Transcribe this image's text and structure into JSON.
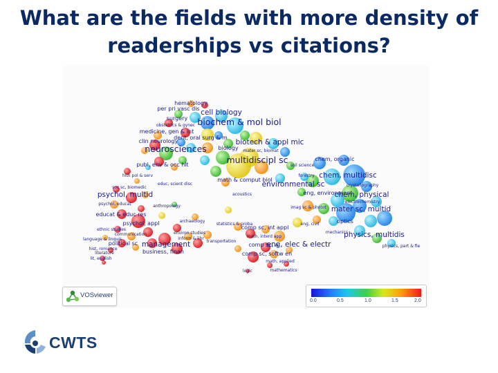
{
  "title": "What are the fields with more density of readerships vs citations?",
  "map": {
    "labels": [
      {
        "text": "hematology",
        "size": "s",
        "cat": 2
      },
      {
        "text": "per pri vasc dis",
        "size": "s",
        "cat": 2
      },
      {
        "text": "cell biology",
        "size": "m",
        "cat": 2
      },
      {
        "text": "surgery",
        "size": "s",
        "cat": 2
      },
      {
        "text": "obstetrics & gynec",
        "size": "xs",
        "cat": 2
      },
      {
        "text": "biochem & mol biol",
        "size": "l",
        "cat": 2
      },
      {
        "text": "medicine, gen & int",
        "size": "s",
        "cat": 2
      },
      {
        "text": "dent, oral surg & m",
        "size": "s",
        "cat": 2
      },
      {
        "text": "clin neurology",
        "size": "s",
        "cat": 2
      },
      {
        "text": "biotech & appl mic",
        "size": "m",
        "cat": 2
      },
      {
        "text": "neurosciences",
        "size": "l",
        "cat": 2
      },
      {
        "text": "biology",
        "size": "s",
        "cat": 2
      },
      {
        "text": "mater sc, biomat",
        "size": "xs",
        "cat": 2
      },
      {
        "text": "multidiscipl sc",
        "size": "l",
        "cat": 2
      },
      {
        "text": "chem, organic",
        "size": "s",
        "cat": 3
      },
      {
        "text": "publ, env & occ hlt",
        "size": "s",
        "cat": 1
      },
      {
        "text": "soil science",
        "size": "xs",
        "cat": 3
      },
      {
        "text": "chem, multidisc",
        "size": "m",
        "cat": 3
      },
      {
        "text": "hlth pol & serv",
        "size": "xs",
        "cat": 1
      },
      {
        "text": "math & comput biol",
        "size": "s",
        "cat": 2
      },
      {
        "text": "forestry",
        "size": "xs",
        "cat": 3
      },
      {
        "text": "environmental sc",
        "size": "m",
        "cat": 3
      },
      {
        "text": "crystallography",
        "size": "xs",
        "cat": 3
      },
      {
        "text": "educ, scient disc",
        "size": "xs",
        "cat": 1
      },
      {
        "text": "soc sc, biomedic",
        "size": "xs",
        "cat": 1
      },
      {
        "text": "eng, environment",
        "size": "s",
        "cat": 3
      },
      {
        "text": "chem, physical",
        "size": "m",
        "cat": 3
      },
      {
        "text": "acoustics",
        "size": "xs",
        "cat": 4
      },
      {
        "text": "psychol, multid",
        "size": "m",
        "cat": 1
      },
      {
        "text": "electrochemistry",
        "size": "xs",
        "cat": 3
      },
      {
        "text": "psychol, educat",
        "size": "xs",
        "cat": 1
      },
      {
        "text": "anthropology",
        "size": "xs",
        "cat": 1
      },
      {
        "text": "imag sc & photot",
        "size": "xs",
        "cat": 3
      },
      {
        "text": "mater sc, multid",
        "size": "m",
        "cat": 3
      },
      {
        "text": "educat & educ res",
        "size": "s",
        "cat": 1
      },
      {
        "text": "archaeology",
        "size": "xs",
        "cat": 1
      },
      {
        "text": "optics",
        "size": "s",
        "cat": 3
      },
      {
        "text": "psychol, appl",
        "size": "s",
        "cat": 1
      },
      {
        "text": "statistics & proba",
        "size": "xs",
        "cat": 4
      },
      {
        "text": "comp sc, int appl",
        "size": "s",
        "cat": 4
      },
      {
        "text": "eng, civil",
        "size": "xs",
        "cat": 4
      },
      {
        "text": "ethnic studies",
        "size": "xs",
        "cat": 1
      },
      {
        "text": "communication",
        "size": "xs",
        "cat": 1
      },
      {
        "text": "mechanics",
        "size": "xs",
        "cat": 3
      },
      {
        "text": "environ studies",
        "size": "xs",
        "cat": 1
      },
      {
        "text": "physics, multidis",
        "size": "m",
        "cat": 3
      },
      {
        "text": "language & linguis",
        "size": "xs",
        "cat": 1
      },
      {
        "text": "political sc",
        "size": "s",
        "cat": 1
      },
      {
        "text": "inform & libr",
        "size": "xs",
        "cat": 1
      },
      {
        "text": "math, interd app",
        "size": "xs",
        "cat": 4
      },
      {
        "text": "management",
        "size": "m",
        "cat": 1
      },
      {
        "text": "transportation",
        "size": "xs",
        "cat": 4
      },
      {
        "text": "eng, elec & electr",
        "size": "m",
        "cat": 4
      },
      {
        "text": "comp sc, a",
        "size": "s",
        "cat": 4
      },
      {
        "text": "physics, part & fie",
        "size": "xs",
        "cat": 3
      },
      {
        "text": "business, finan",
        "size": "s",
        "cat": 1
      },
      {
        "text": "hist, romance",
        "size": "xs",
        "cat": 1
      },
      {
        "text": "literature",
        "size": "xs",
        "cat": 1
      },
      {
        "text": "comp sc, softw en",
        "size": "s",
        "cat": 4
      },
      {
        "text": "lit, english",
        "size": "xs",
        "cat": 1
      },
      {
        "text": "math, applied",
        "size": "xs",
        "cat": 4
      },
      {
        "text": "mathematics",
        "size": "xs",
        "cat": 4
      },
      {
        "text": "logic",
        "size": "xs",
        "cat": 4
      }
    ]
  },
  "vosviewer_label": "VOSviewer",
  "colorbar": {
    "ticks": [
      "0.0",
      "0.5",
      "1.0",
      "1.5",
      "2.0"
    ],
    "min": 0.0,
    "max": 2.0,
    "stops": [
      "#1616d8",
      "#1f7fff",
      "#1ec8e8",
      "#3fcf4a",
      "#d8e81e",
      "#ff9a10",
      "#f01818"
    ]
  },
  "cwts_label": "CWTS",
  "colors": {
    "title": "#0b2a63",
    "label": "#1a1a8c",
    "cwts_dark": "#1b3e73",
    "cwts_light": "#5a8fc8"
  }
}
